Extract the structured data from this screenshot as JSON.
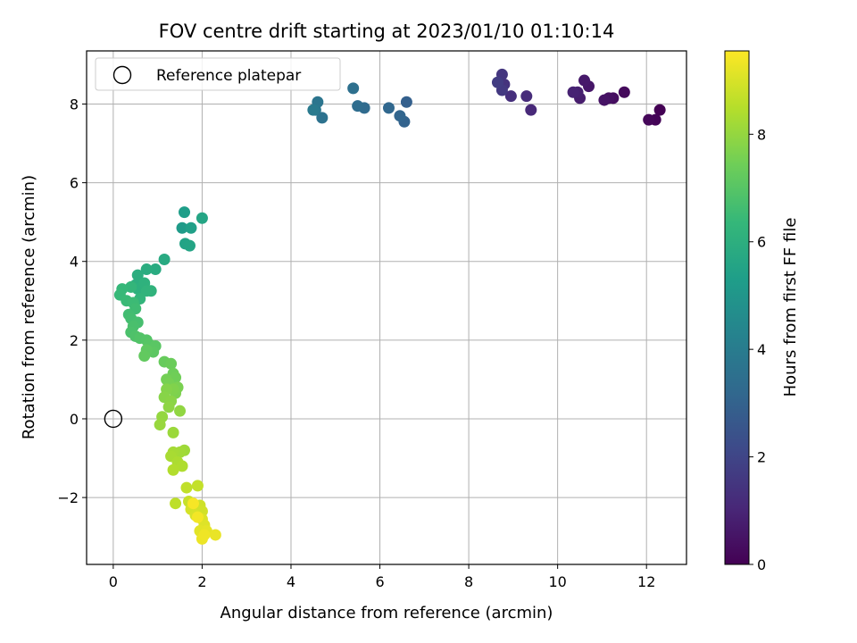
{
  "chart_data": {
    "type": "scatter",
    "title": "FOV centre drift starting at 2023/01/10 01:10:14",
    "xlabel": "Angular distance from reference (arcmin)",
    "ylabel": "Rotation from reference (arcmin)",
    "xlim": [
      -0.6,
      12.9
    ],
    "ylim": [
      -3.7,
      9.35
    ],
    "xticks": [
      0,
      2,
      4,
      6,
      8,
      10,
      12
    ],
    "yticks": [
      -2,
      0,
      2,
      4,
      6,
      8
    ],
    "grid": true,
    "legend": {
      "location": "upper-left",
      "entries": [
        {
          "label": "Reference platepar",
          "marker": "open-circle"
        }
      ]
    },
    "reference_point": {
      "x": 0,
      "y": 0
    },
    "colorbar": {
      "label": "Hours from first FF file",
      "colormap": "viridis",
      "range": [
        0,
        9.55
      ],
      "ticks": [
        0,
        2,
        4,
        6,
        8
      ],
      "stops": [
        "#440154",
        "#482878",
        "#3e4989",
        "#31688e",
        "#26828e",
        "#1f9e89",
        "#35b779",
        "#6ece58",
        "#b5de2b",
        "#fde725"
      ]
    },
    "points": [
      [
        12.3,
        7.85,
        0.0
      ],
      [
        12.2,
        7.6,
        0.08
      ],
      [
        12.05,
        7.6,
        0.16
      ],
      [
        11.5,
        8.3,
        0.25
      ],
      [
        11.25,
        8.15,
        0.33
      ],
      [
        11.15,
        8.15,
        0.41
      ],
      [
        11.05,
        8.1,
        0.5
      ],
      [
        10.7,
        8.45,
        0.58
      ],
      [
        10.6,
        8.6,
        0.66
      ],
      [
        10.5,
        8.15,
        0.75
      ],
      [
        10.45,
        8.3,
        0.83
      ],
      [
        10.35,
        8.3,
        0.91
      ],
      [
        9.4,
        7.85,
        1.1
      ],
      [
        9.3,
        8.2,
        1.2
      ],
      [
        8.95,
        8.2,
        1.3
      ],
      [
        8.8,
        8.5,
        1.4
      ],
      [
        8.75,
        8.75,
        1.5
      ],
      [
        8.75,
        8.35,
        1.6
      ],
      [
        8.65,
        8.55,
        1.7
      ],
      [
        6.6,
        8.05,
        2.9
      ],
      [
        6.55,
        7.55,
        3.0
      ],
      [
        6.45,
        7.7,
        3.1
      ],
      [
        6.2,
        7.9,
        3.2
      ],
      [
        5.65,
        7.9,
        3.3
      ],
      [
        5.5,
        7.95,
        3.4
      ],
      [
        5.4,
        8.4,
        3.5
      ],
      [
        4.7,
        7.65,
        3.6
      ],
      [
        4.6,
        8.05,
        3.7
      ],
      [
        4.55,
        7.85,
        3.8
      ],
      [
        4.5,
        7.85,
        3.9
      ],
      [
        1.55,
        4.85,
        5.2
      ],
      [
        1.6,
        5.25,
        5.3
      ],
      [
        1.75,
        4.85,
        5.4
      ],
      [
        1.62,
        4.45,
        5.5
      ],
      [
        1.72,
        4.4,
        5.55
      ],
      [
        2.0,
        5.1,
        5.6
      ],
      [
        1.15,
        4.05,
        5.8
      ],
      [
        0.95,
        3.8,
        5.85
      ],
      [
        0.75,
        3.8,
        5.9
      ],
      [
        0.55,
        3.65,
        5.95
      ],
      [
        0.5,
        3.4,
        6.0
      ],
      [
        0.55,
        3.3,
        6.05
      ],
      [
        0.7,
        3.45,
        6.1
      ],
      [
        0.85,
        3.25,
        6.15
      ],
      [
        0.75,
        3.25,
        6.2
      ],
      [
        0.6,
        3.05,
        6.25
      ],
      [
        0.4,
        3.35,
        6.3
      ],
      [
        0.2,
        3.3,
        6.35
      ],
      [
        0.15,
        3.15,
        6.4
      ],
      [
        0.3,
        3.0,
        6.45
      ],
      [
        0.45,
        2.95,
        6.5
      ],
      [
        0.5,
        2.8,
        6.55
      ],
      [
        0.35,
        2.65,
        6.6
      ],
      [
        0.4,
        2.55,
        6.65
      ],
      [
        0.55,
        2.45,
        6.7
      ],
      [
        0.45,
        2.35,
        6.75
      ],
      [
        0.4,
        2.2,
        6.8
      ],
      [
        0.5,
        2.1,
        6.85
      ],
      [
        0.6,
        2.05,
        6.9
      ],
      [
        0.75,
        2.0,
        6.95
      ],
      [
        0.8,
        1.9,
        7.0
      ],
      [
        0.95,
        1.85,
        7.05
      ],
      [
        0.9,
        1.7,
        7.1
      ],
      [
        0.75,
        1.75,
        7.15
      ],
      [
        0.7,
        1.6,
        7.2
      ],
      [
        1.15,
        1.45,
        7.3
      ],
      [
        1.3,
        1.4,
        7.35
      ],
      [
        1.35,
        1.15,
        7.4
      ],
      [
        1.4,
        1.05,
        7.45
      ],
      [
        1.2,
        1.0,
        7.5
      ],
      [
        1.25,
        0.9,
        7.55
      ],
      [
        1.45,
        0.8,
        7.6
      ],
      [
        1.4,
        0.65,
        7.65
      ],
      [
        1.35,
        0.75,
        7.7
      ],
      [
        1.2,
        0.75,
        7.75
      ],
      [
        1.15,
        0.55,
        7.8
      ],
      [
        1.3,
        0.45,
        7.85
      ],
      [
        1.25,
        0.3,
        7.9
      ],
      [
        1.5,
        0.2,
        7.95
      ],
      [
        1.1,
        0.05,
        8.0
      ],
      [
        1.05,
        -0.15,
        8.05
      ],
      [
        1.35,
        -0.35,
        8.1
      ],
      [
        1.6,
        -0.8,
        8.15
      ],
      [
        1.5,
        -0.85,
        8.2
      ],
      [
        1.35,
        -0.85,
        8.25
      ],
      [
        1.3,
        -0.95,
        8.3
      ],
      [
        1.45,
        -1.1,
        8.35
      ],
      [
        1.55,
        -1.2,
        8.4
      ],
      [
        1.35,
        -1.3,
        8.45
      ],
      [
        1.4,
        -2.15,
        8.6
      ],
      [
        1.65,
        -1.75,
        8.65
      ],
      [
        1.9,
        -1.7,
        8.7
      ],
      [
        1.7,
        -2.1,
        8.75
      ],
      [
        1.8,
        -2.25,
        8.8
      ],
      [
        1.95,
        -2.2,
        8.85
      ],
      [
        2.0,
        -2.35,
        8.9
      ],
      [
        1.75,
        -2.3,
        8.95
      ],
      [
        1.85,
        -2.45,
        9.0
      ],
      [
        2.0,
        -2.55,
        9.05
      ],
      [
        2.05,
        -2.7,
        9.1
      ],
      [
        1.95,
        -2.85,
        9.15
      ],
      [
        2.1,
        -2.85,
        9.2
      ],
      [
        2.3,
        -2.95,
        9.25
      ],
      [
        2.0,
        -3.05,
        9.3
      ],
      [
        2.05,
        -2.95,
        9.35
      ],
      [
        1.9,
        -2.5,
        9.4
      ],
      [
        1.8,
        -2.15,
        9.45
      ]
    ]
  }
}
